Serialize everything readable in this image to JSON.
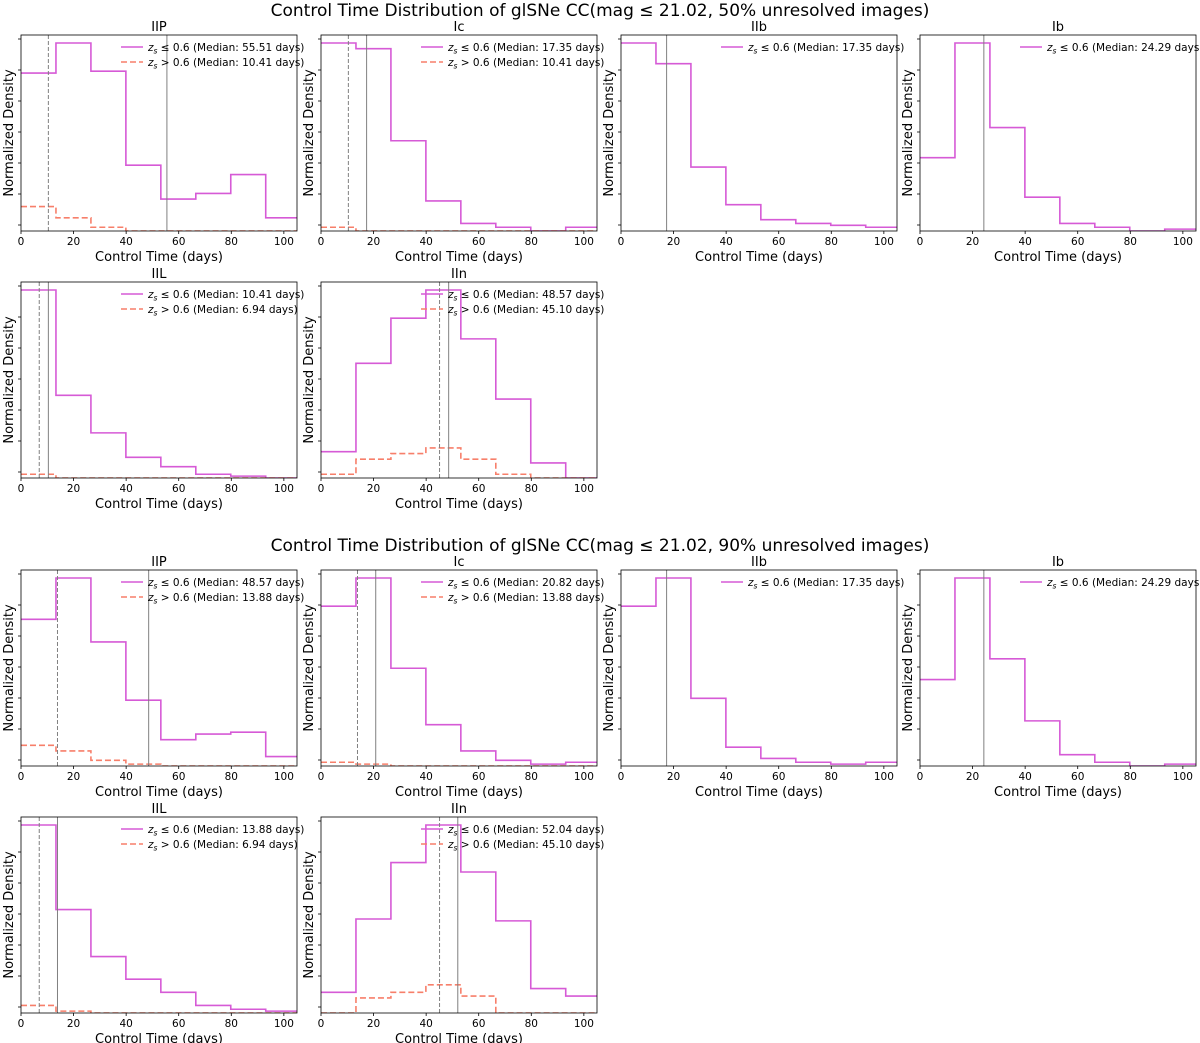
{
  "figures": [
    {
      "title": "Control Time Distribution of glSNe CC(mag ≤ 21.02, 50% unresolved images)"
    },
    {
      "title": "Control Time Distribution of glSNe CC(mag ≤ 21.02, 90% unresolved images)"
    }
  ],
  "colors": {
    "low_z": "#d65ad6",
    "high_z": "#f77f6a",
    "median_low": "#808080",
    "median_high": "#808080"
  },
  "chart_data": [
    {
      "type": "histogram-step",
      "figure": 0,
      "title": "IIP",
      "xlabel": "Control Time (days)",
      "ylabel": "Normalized Density",
      "xlim": [
        0,
        105
      ],
      "ylim": [
        0,
        1
      ],
      "bin_edges": [
        0,
        13.3,
        26.6,
        39.9,
        53.2,
        66.5,
        79.8,
        93.1,
        106.4
      ],
      "series": [
        {
          "name": "low",
          "label": "z_s ≤ 0.6 (Median: 55.51 days)",
          "values": [
            0.84,
            1.0,
            0.85,
            0.35,
            0.17,
            0.2,
            0.3,
            0.07
          ],
          "median": 55.51,
          "style": "solid"
        },
        {
          "name": "high",
          "label": "z_s > 0.6 (Median: 10.41 days)",
          "values": [
            0.13,
            0.07,
            0.02,
            0,
            0,
            0,
            0,
            0
          ],
          "median": 10.41,
          "style": "dashed"
        }
      ]
    },
    {
      "type": "histogram-step",
      "figure": 0,
      "title": "Ic",
      "xlabel": "Control Time (days)",
      "ylabel": "Normalized Density",
      "xlim": [
        0,
        105
      ],
      "ylim": [
        0,
        1
      ],
      "bin_edges": [
        0,
        13.3,
        26.6,
        39.9,
        53.2,
        66.5,
        79.8,
        93.1,
        106.4
      ],
      "series": [
        {
          "name": "low",
          "label": "z_s ≤ 0.6 (Median: 17.35 days)",
          "values": [
            1.0,
            0.97,
            0.48,
            0.16,
            0.04,
            0.02,
            0.0,
            0.02
          ],
          "median": 17.35,
          "style": "solid"
        },
        {
          "name": "high",
          "label": "z_s > 0.6 (Median: 10.41 days)",
          "values": [
            0.02,
            0.0,
            0,
            0,
            0,
            0,
            0,
            0
          ],
          "median": 10.41,
          "style": "dashed"
        }
      ]
    },
    {
      "type": "histogram-step",
      "figure": 0,
      "title": "IIb",
      "xlabel": "Control Time (days)",
      "ylabel": "Normalized Density",
      "xlim": [
        0,
        105
      ],
      "ylim": [
        0,
        1
      ],
      "bin_edges": [
        0,
        13.3,
        26.6,
        39.9,
        53.2,
        66.5,
        79.8,
        93.1,
        106.4
      ],
      "series": [
        {
          "name": "low",
          "label": "z_s ≤ 0.6 (Median: 17.35 days)",
          "values": [
            1.0,
            0.89,
            0.34,
            0.14,
            0.06,
            0.04,
            0.03,
            0.02
          ],
          "median": 17.35,
          "style": "solid"
        }
      ]
    },
    {
      "type": "histogram-step",
      "figure": 0,
      "title": "Ib",
      "xlabel": "Control Time (days)",
      "ylabel": "Normalized Density",
      "xlim": [
        0,
        105
      ],
      "ylim": [
        0,
        1
      ],
      "bin_edges": [
        0,
        13.3,
        26.6,
        39.9,
        53.2,
        66.5,
        79.8,
        93.1,
        106.4
      ],
      "series": [
        {
          "name": "low",
          "label": "z_s ≤ 0.6 (Median: 24.29 days)",
          "values": [
            0.39,
            1.0,
            0.55,
            0.18,
            0.04,
            0.02,
            0.0,
            0.01
          ],
          "median": 24.29,
          "style": "solid"
        }
      ]
    },
    {
      "type": "histogram-step",
      "figure": 0,
      "title": "IIL",
      "xlabel": "Control Time (days)",
      "ylabel": "Normalized Density",
      "xlim": [
        0,
        105
      ],
      "ylim": [
        0,
        1
      ],
      "bin_edges": [
        0,
        13.3,
        26.6,
        39.9,
        53.2,
        66.5,
        79.8,
        93.1,
        106.4
      ],
      "series": [
        {
          "name": "low",
          "label": "z_s ≤ 0.6 (Median: 10.41 days)",
          "values": [
            1.0,
            0.44,
            0.24,
            0.11,
            0.06,
            0.02,
            0.01,
            0.0
          ],
          "median": 10.41,
          "style": "solid"
        },
        {
          "name": "high",
          "label": "z_s > 0.6 (Median: 6.94 days)",
          "values": [
            0.02,
            0.0,
            0,
            0,
            0,
            0,
            0,
            0
          ],
          "median": 6.94,
          "style": "dashed"
        }
      ]
    },
    {
      "type": "histogram-step",
      "figure": 0,
      "title": "IIn",
      "xlabel": "Control Time (days)",
      "ylabel": "Normalized Density",
      "xlim": [
        0,
        105
      ],
      "ylim": [
        0,
        1
      ],
      "bin_edges": [
        0,
        13.3,
        26.6,
        39.9,
        53.2,
        66.5,
        79.8,
        93.1,
        106.4
      ],
      "series": [
        {
          "name": "low",
          "label": "z_s ≤ 0.6 (Median: 48.57 days)",
          "values": [
            0.14,
            0.61,
            0.85,
            1.0,
            0.74,
            0.42,
            0.08,
            0
          ],
          "median": 48.57,
          "style": "solid"
        },
        {
          "name": "high",
          "label": "z_s > 0.6 (Median: 45.10 days)",
          "values": [
            0.02,
            0.1,
            0.13,
            0.16,
            0.1,
            0.02,
            0,
            0
          ],
          "median": 45.1,
          "style": "dashed"
        }
      ]
    },
    {
      "type": "histogram-step",
      "figure": 1,
      "title": "IIP",
      "xlabel": "Control Time (days)",
      "ylabel": "Normalized Density",
      "xlim": [
        0,
        105
      ],
      "ylim": [
        0,
        1
      ],
      "bin_edges": [
        0,
        13.3,
        26.6,
        39.9,
        53.2,
        66.5,
        79.8,
        93.1,
        106.4
      ],
      "series": [
        {
          "name": "low",
          "label": "z_s ≤ 0.6 (Median: 48.57 days)",
          "values": [
            0.78,
            1.0,
            0.66,
            0.35,
            0.14,
            0.17,
            0.18,
            0.05
          ],
          "median": 48.57,
          "style": "solid"
        },
        {
          "name": "high",
          "label": "z_s > 0.6 (Median: 13.88 days)",
          "values": [
            0.11,
            0.08,
            0.03,
            0.01,
            0,
            0,
            0,
            0
          ],
          "median": 13.88,
          "style": "dashed"
        }
      ]
    },
    {
      "type": "histogram-step",
      "figure": 1,
      "title": "Ic",
      "xlabel": "Control Time (days)",
      "ylabel": "Normalized Density",
      "xlim": [
        0,
        105
      ],
      "ylim": [
        0,
        1
      ],
      "bin_edges": [
        0,
        13.3,
        26.6,
        39.9,
        53.2,
        66.5,
        79.8,
        93.1,
        106.4
      ],
      "series": [
        {
          "name": "low",
          "label": "z_s ≤ 0.6 (Median: 20.82 days)",
          "values": [
            0.85,
            1.0,
            0.52,
            0.22,
            0.08,
            0.03,
            0.01,
            0.02
          ],
          "median": 20.82,
          "style": "solid"
        },
        {
          "name": "high",
          "label": "z_s > 0.6 (Median: 13.88 days)",
          "values": [
            0.02,
            0.01,
            0,
            0,
            0,
            0,
            0,
            0
          ],
          "median": 13.88,
          "style": "dashed"
        }
      ]
    },
    {
      "type": "histogram-step",
      "figure": 1,
      "title": "IIb",
      "xlabel": "Control Time (days)",
      "ylabel": "Normalized Density",
      "xlim": [
        0,
        105
      ],
      "ylim": [
        0,
        1
      ],
      "bin_edges": [
        0,
        13.3,
        26.6,
        39.9,
        53.2,
        66.5,
        79.8,
        93.1,
        106.4
      ],
      "series": [
        {
          "name": "low",
          "label": "z_s ≤ 0.6 (Median: 17.35 days)",
          "values": [
            0.85,
            1.0,
            0.36,
            0.1,
            0.04,
            0.02,
            0.01,
            0.02
          ],
          "median": 17.35,
          "style": "solid"
        }
      ]
    },
    {
      "type": "histogram-step",
      "figure": 1,
      "title": "Ib",
      "xlabel": "Control Time (days)",
      "ylabel": "Normalized Density",
      "xlim": [
        0,
        105
      ],
      "ylim": [
        0,
        1
      ],
      "bin_edges": [
        0,
        13.3,
        26.6,
        39.9,
        53.2,
        66.5,
        79.8,
        93.1,
        106.4
      ],
      "series": [
        {
          "name": "low",
          "label": "z_s ≤ 0.6 (Median: 24.29 days)",
          "values": [
            0.46,
            1.0,
            0.57,
            0.24,
            0.06,
            0.02,
            0.0,
            0.01
          ],
          "median": 24.29,
          "style": "solid"
        }
      ]
    },
    {
      "type": "histogram-step",
      "figure": 1,
      "title": "IIL",
      "xlabel": "Control Time (days)",
      "ylabel": "Normalized Density",
      "xlim": [
        0,
        105
      ],
      "ylim": [
        0,
        1
      ],
      "bin_edges": [
        0,
        13.3,
        26.6,
        39.9,
        53.2,
        66.5,
        79.8,
        93.1,
        106.4
      ],
      "series": [
        {
          "name": "low",
          "label": "z_s ≤ 0.6 (Median: 13.88 days)",
          "values": [
            1.0,
            0.55,
            0.3,
            0.18,
            0.11,
            0.04,
            0.02,
            0.01
          ],
          "median": 13.88,
          "style": "solid"
        },
        {
          "name": "high",
          "label": "z_s > 0.6 (Median: 6.94 days)",
          "values": [
            0.04,
            0.01,
            0,
            0,
            0,
            0,
            0,
            0
          ],
          "median": 6.94,
          "style": "dashed"
        }
      ]
    },
    {
      "type": "histogram-step",
      "figure": 1,
      "title": "IIn",
      "xlabel": "Control Time (days)",
      "ylabel": "Normalized Density",
      "xlim": [
        0,
        105
      ],
      "ylim": [
        0,
        1
      ],
      "bin_edges": [
        0,
        13.3,
        26.6,
        39.9,
        53.2,
        66.5,
        79.8,
        93.1,
        106.4
      ],
      "series": [
        {
          "name": "low",
          "label": "z_s ≤ 0.6 (Median: 52.04 days)",
          "values": [
            0.11,
            0.5,
            0.8,
            1.0,
            0.75,
            0.49,
            0.13,
            0.09
          ],
          "median": 52.04,
          "style": "solid"
        },
        {
          "name": "high",
          "label": "z_s > 0.6 (Median: 45.10 days)",
          "values": [
            0.0,
            0.08,
            0.11,
            0.15,
            0.09,
            0.0,
            0,
            0
          ],
          "median": 45.1,
          "style": "dashed"
        }
      ]
    }
  ]
}
